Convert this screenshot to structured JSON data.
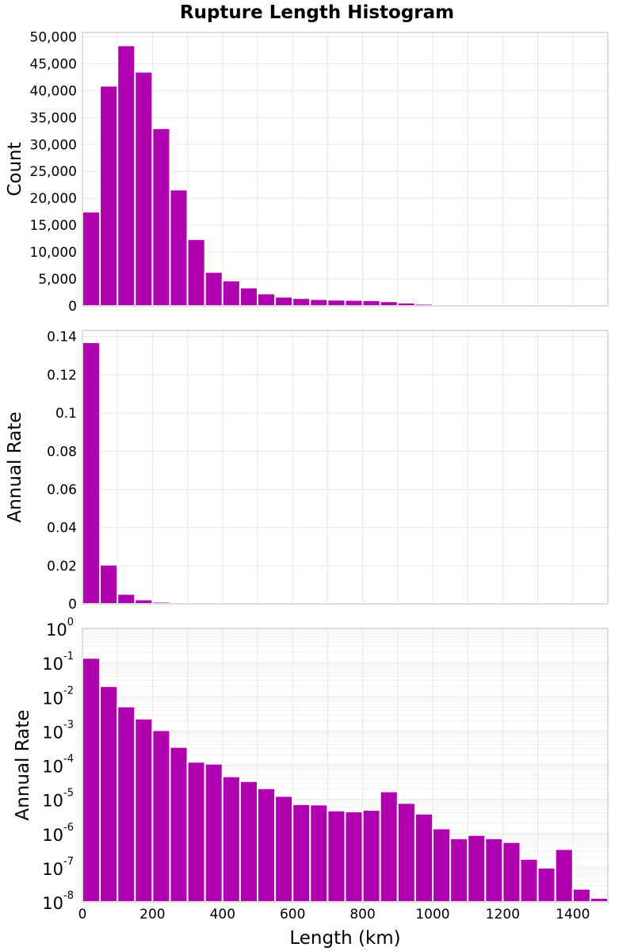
{
  "title": "Rupture Length Histogram",
  "colors": {
    "bar": "#b000b0",
    "background": "#ffffff",
    "grid": "#e6e6e6"
  },
  "chart_data": [
    {
      "id": "count",
      "type": "bar",
      "title": "Rupture Length Histogram",
      "xlabel": "",
      "ylabel": "Count",
      "bin_width": 50,
      "x": [
        0,
        50,
        100,
        150,
        200,
        250,
        300,
        350,
        400,
        450,
        500,
        550,
        600,
        650,
        700,
        750,
        800,
        850,
        900,
        950,
        1000,
        1050,
        1100,
        1150,
        1200,
        1250,
        1300,
        1350,
        1400,
        1450
      ],
      "values": [
        17500,
        40900,
        48400,
        43500,
        33000,
        21600,
        12400,
        6300,
        4700,
        3400,
        2300,
        1700,
        1450,
        1250,
        1150,
        1100,
        1050,
        850,
        600,
        380,
        250,
        190,
        150,
        120,
        90,
        70,
        50,
        40,
        25,
        10
      ],
      "xlim": [
        0,
        1500
      ],
      "ylim": [
        0,
        50800
      ],
      "yticks": [
        0,
        5000,
        10000,
        15000,
        20000,
        25000,
        30000,
        35000,
        40000,
        45000,
        50000
      ],
      "ytick_labels": [
        "0",
        "5,000",
        "10,000",
        "15,000",
        "20,000",
        "25,000",
        "30,000",
        "35,000",
        "40,000",
        "45,000",
        "50,000"
      ],
      "grid": true
    },
    {
      "id": "rate-linear",
      "type": "bar",
      "xlabel": "",
      "ylabel": "Annual Rate",
      "bin_width": 50,
      "x": [
        0,
        50,
        100,
        150,
        200,
        250,
        300,
        350,
        400,
        450,
        500,
        550,
        600,
        650,
        700,
        750,
        800,
        850,
        900,
        950,
        1000,
        1050,
        1100,
        1150,
        1200,
        1250,
        1300,
        1350,
        1400,
        1450
      ],
      "values": [
        0.137,
        0.0205,
        0.0052,
        0.0023,
        0.00105,
        0.00034,
        0.000125,
        0.00011,
        4.7e-05,
        3.4e-05,
        2.1e-05,
        1.25e-05,
        7.2e-06,
        7e-06,
        4.7e-06,
        4.4e-06,
        4.9e-06,
        1.7e-05,
        7.8e-06,
        3.8e-06,
        1.4e-06,
        7.2e-07,
        9e-07,
        7.2e-07,
        5.6e-07,
        1.8e-07,
        1e-07,
        3.5e-07,
        2.4e-08,
        1.3e-08
      ],
      "xlim": [
        0,
        1500
      ],
      "ylim": [
        0,
        0.1432
      ],
      "yticks": [
        0,
        0.02,
        0.04,
        0.06,
        0.08,
        0.1,
        0.12,
        0.14
      ],
      "ytick_labels": [
        "0",
        "0.02",
        "0.04",
        "0.06",
        "0.08",
        "0.1",
        "0.12",
        "0.14"
      ],
      "grid": true
    },
    {
      "id": "rate-log",
      "type": "bar",
      "xlabel": "Length (km)",
      "ylabel": "Annual Rate",
      "yscale": "log",
      "bin_width": 50,
      "x": [
        0,
        50,
        100,
        150,
        200,
        250,
        300,
        350,
        400,
        450,
        500,
        550,
        600,
        650,
        700,
        750,
        800,
        850,
        900,
        950,
        1000,
        1050,
        1100,
        1150,
        1200,
        1250,
        1300,
        1350,
        1400,
        1450
      ],
      "values": [
        0.137,
        0.0205,
        0.0052,
        0.0023,
        0.00105,
        0.00034,
        0.000125,
        0.00011,
        4.7e-05,
        3.4e-05,
        2.1e-05,
        1.25e-05,
        7.2e-06,
        7e-06,
        4.7e-06,
        4.4e-06,
        4.9e-06,
        1.7e-05,
        7.8e-06,
        3.8e-06,
        1.4e-06,
        7.2e-07,
        9e-07,
        7.2e-07,
        5.6e-07,
        1.8e-07,
        1e-07,
        3.5e-07,
        2.4e-08,
        1.3e-08
      ],
      "xlim": [
        0,
        1500
      ],
      "ylim": [
        1e-08,
        1
      ],
      "xticks": [
        0,
        200,
        400,
        600,
        800,
        1000,
        1200,
        1400
      ],
      "xtick_labels": [
        "0",
        "200",
        "400",
        "600",
        "800",
        "1000",
        "1200",
        "1400"
      ],
      "yticks": [
        1,
        0.1,
        0.01,
        0.001,
        0.0001,
        1e-05,
        1e-06,
        1e-07,
        1e-08
      ],
      "ytick_bases": [
        "10",
        "10",
        "10",
        "10",
        "10",
        "10",
        "10",
        "10",
        "10"
      ],
      "ytick_exponents": [
        "0",
        "-1",
        "-2",
        "-3",
        "-4",
        "-5",
        "-6",
        "-7",
        "-8"
      ],
      "grid": true
    }
  ]
}
